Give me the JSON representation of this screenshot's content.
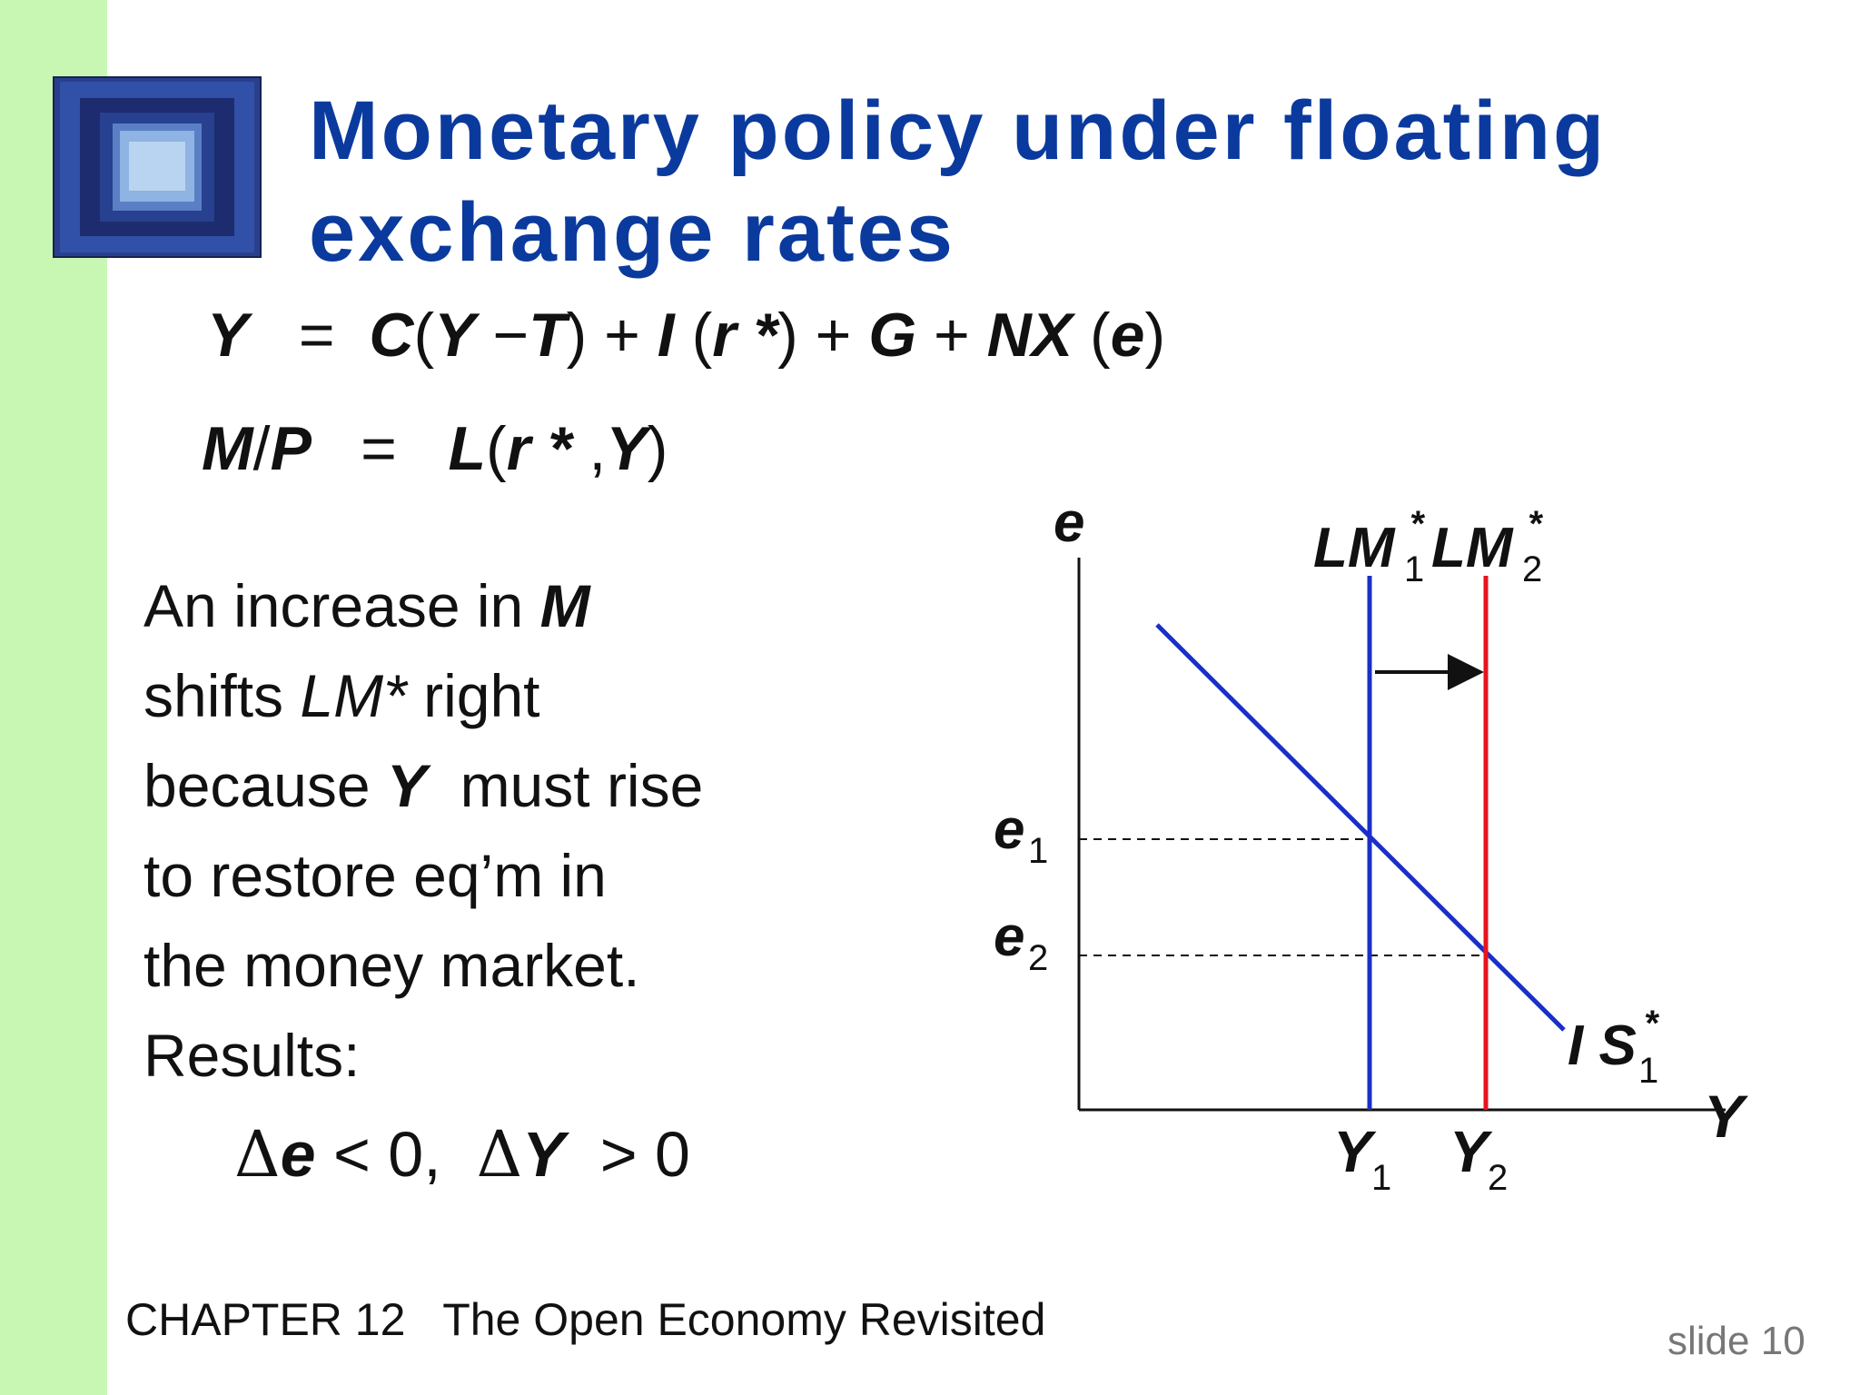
{
  "title": {
    "line1": "Monetary policy under floating",
    "line2": "exchange rates"
  },
  "equations": {
    "goods": {
      "lhs": "Y",
      "eq": "=",
      "c": "C",
      "open1": "(",
      "y": "Y",
      "minus": " −",
      "t": "T",
      "close1": ") +",
      "i": "I",
      "open2": " (",
      "r": "r",
      "star": " *",
      "close2": ") +",
      "g": "G",
      "plus": " +",
      "nx": "NX",
      "open3": " (",
      "e": "e",
      "close3": ")"
    },
    "money": {
      "m": "M",
      "slash": "/",
      "p": "P",
      "eq": "=",
      "l": "L",
      "open": "(",
      "r": "r",
      "star": " *",
      "comma": " ,",
      "y": "Y",
      "close": ")"
    }
  },
  "body": {
    "l1a": "An increase in ",
    "l1b": "M",
    "l2a": "shifts ",
    "l2b": "LM*",
    "l2c": " right",
    "l3a": "because ",
    "l3b": "Y",
    "l3c": "  must rise",
    "l4": "to restore eq’m in",
    "l5": "the money market.",
    "l6": "Results:"
  },
  "results": {
    "delta1": "Δ",
    "e": "e",
    "part1": " < 0,  ",
    "delta2": "Δ",
    "y": "Y",
    "part2": "  > 0"
  },
  "diagram": {
    "y_axis_label": "e",
    "x_axis_label": "Y",
    "lm1": {
      "main": "LM",
      "sub": "1",
      "sup": "*",
      "color": "#1a2fc8"
    },
    "lm2": {
      "main": "LM",
      "sub": "2",
      "sup": "*",
      "color": "#e8141c"
    },
    "is": {
      "main": "I S",
      "sub": "1",
      "sup": "*",
      "color": "#1a2fc8"
    },
    "e1": {
      "main": "e",
      "sub": "1"
    },
    "e2": {
      "main": "e",
      "sub": "2"
    },
    "y1": {
      "main": "Y",
      "sub": "1"
    },
    "y2": {
      "main": "Y",
      "sub": "2"
    }
  },
  "footer": {
    "chapter": "CHAPTER 12   The Open Economy Revisited",
    "slide": "slide 10"
  }
}
